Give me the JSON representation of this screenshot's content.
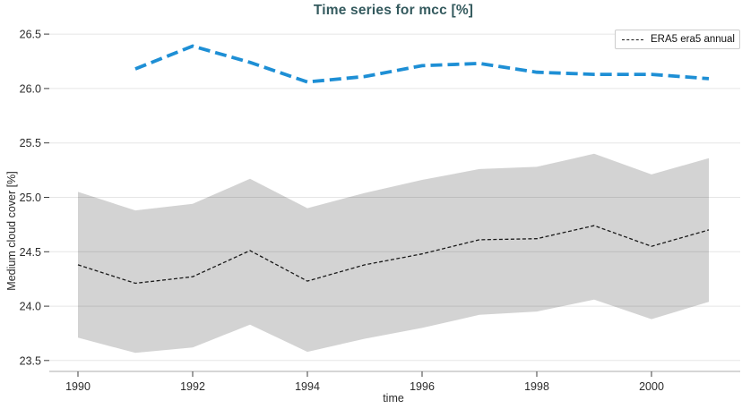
{
  "header": {
    "title": "Time series for mcc [%]"
  },
  "legend": {
    "position": "upper-right",
    "entries": [
      {
        "label": "ERA5 era5 annual",
        "marker": "black-dashed-line",
        "marker_color": "#1a1a1a"
      }
    ]
  },
  "axes": {
    "xlabel": "time",
    "ylabel": "Medium cloud cover [%]",
    "x_tick_labels": [
      "1990",
      "1992",
      "1994",
      "1996",
      "1998",
      "2000"
    ],
    "y_tick_labels": [
      "23.5",
      "24.0",
      "24.5",
      "25.0",
      "25.5",
      "26.0",
      "26.5"
    ]
  },
  "colors": {
    "title_text": "#345a5e",
    "blue_dashed_line": "#1e8fd5",
    "black_dashed_line": "#1a1a1a",
    "band_fill": "#d3d3d3",
    "gridline": "rgba(0,0,0,0.10)",
    "axis_line": "#c9c9c9",
    "tick_mark": "#3c3c3c",
    "tick_text": "#2b2b2b",
    "legend_border": "#cccccc"
  },
  "chart_data": {
    "type": "line",
    "title": "Time series for mcc [%]",
    "xlabel": "time",
    "ylabel": "Medium cloud cover [%]",
    "xlim": [
      1989.5,
      2001.5
    ],
    "ylim": [
      23.4,
      26.69
    ],
    "x_ticks": [
      1990,
      1992,
      1994,
      1996,
      1998,
      2000
    ],
    "y_ticks": [
      23.5,
      24.0,
      24.5,
      25.0,
      25.5,
      26.0,
      26.5
    ],
    "grid": "horizontal",
    "legend_position": "upper-right",
    "series": [
      {
        "id": "era5-spread-band",
        "type": "band",
        "fill": "#d3d3d3",
        "x": [
          1990,
          1991,
          1992,
          1993,
          1994,
          1995,
          1996,
          1997,
          1998,
          1999,
          2000,
          2001
        ],
        "upper": [
          25.05,
          24.88,
          24.94,
          25.17,
          24.9,
          25.04,
          25.16,
          25.26,
          25.28,
          25.4,
          25.21,
          25.36
        ],
        "lower": [
          23.71,
          23.57,
          23.62,
          23.83,
          23.58,
          23.7,
          23.8,
          23.92,
          23.95,
          24.06,
          23.88,
          24.04
        ]
      },
      {
        "id": "era5-annual-black-dashed",
        "legend_label": "ERA5 era5 annual",
        "type": "line",
        "style": {
          "color": "#1a1a1a",
          "width": 1.3,
          "dash": [
            4,
            2.5
          ]
        },
        "x": [
          1990,
          1991,
          1992,
          1993,
          1994,
          1995,
          1996,
          1997,
          1998,
          1999,
          2000,
          2001
        ],
        "values": [
          24.38,
          24.21,
          24.27,
          24.51,
          24.23,
          24.38,
          24.48,
          24.61,
          24.62,
          24.74,
          24.55,
          24.7
        ]
      },
      {
        "id": "blue-thick-dashed",
        "legend_label": "",
        "type": "line",
        "style": {
          "color": "#1e8fd5",
          "width": 3.8,
          "dash": [
            13,
            6
          ]
        },
        "x": [
          1991,
          1992,
          1993,
          1994,
          1995,
          1996,
          1997,
          1998,
          1999,
          2000,
          2001
        ],
        "values": [
          26.18,
          26.39,
          26.24,
          26.06,
          26.11,
          26.21,
          26.23,
          26.15,
          26.13,
          26.13,
          26.09
        ]
      }
    ]
  }
}
